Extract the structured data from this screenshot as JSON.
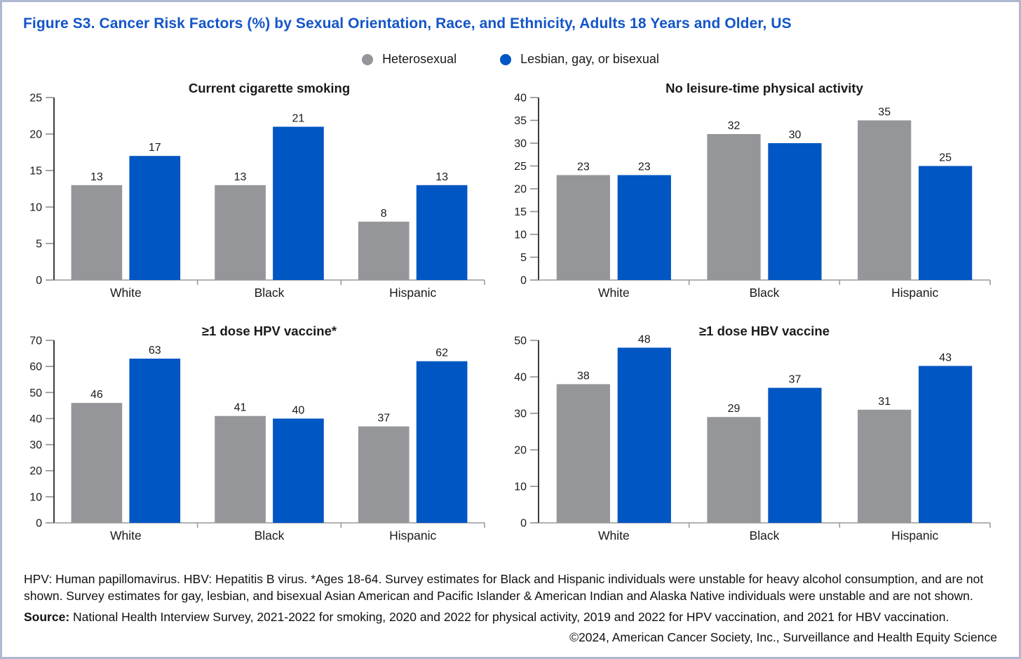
{
  "figure": {
    "title": "Figure S3. Cancer Risk Factors (%) by Sexual Orientation, Race, and Ethnicity, Adults 18 Years and Older, US",
    "title_color": "#1355c8",
    "border_color": "#aeb8d0",
    "background_color": "#ffffff"
  },
  "legend": {
    "position": "top-center",
    "items": [
      {
        "label": "Heterosexual",
        "color": "#949699"
      },
      {
        "label": "Lesbian, gay, or bisexual",
        "color": "#0056c2"
      }
    ]
  },
  "chart_data": [
    {
      "type": "bar",
      "title": "Current cigarette smoking",
      "categories": [
        "White",
        "Black",
        "Hispanic"
      ],
      "series": [
        {
          "name": "Heterosexual",
          "color": "#949699",
          "values": [
            13,
            13,
            8
          ]
        },
        {
          "name": "Lesbian, gay, or bisexual",
          "color": "#0056c2",
          "values": [
            17,
            21,
            13
          ]
        }
      ],
      "xlabel": "",
      "ylabel": "",
      "ylim": [
        0,
        25
      ],
      "ytick": 5,
      "grid": false,
      "value_labels": true
    },
    {
      "type": "bar",
      "title": "No leisure-time physical activity",
      "categories": [
        "White",
        "Black",
        "Hispanic"
      ],
      "series": [
        {
          "name": "Heterosexual",
          "color": "#949699",
          "values": [
            23,
            32,
            35
          ]
        },
        {
          "name": "Lesbian, gay, or bisexual",
          "color": "#0056c2",
          "values": [
            23,
            30,
            25
          ]
        }
      ],
      "xlabel": "",
      "ylabel": "",
      "ylim": [
        0,
        40
      ],
      "ytick": 5,
      "grid": false,
      "value_labels": true
    },
    {
      "type": "bar",
      "title": "≥1 dose HPV vaccine*",
      "categories": [
        "White",
        "Black",
        "Hispanic"
      ],
      "series": [
        {
          "name": "Heterosexual",
          "color": "#949699",
          "values": [
            46,
            41,
            37
          ]
        },
        {
          "name": "Lesbian, gay, or bisexual",
          "color": "#0056c2",
          "values": [
            63,
            40,
            62
          ]
        }
      ],
      "xlabel": "",
      "ylabel": "",
      "ylim": [
        0,
        70
      ],
      "ytick": 10,
      "grid": false,
      "value_labels": true
    },
    {
      "type": "bar",
      "title": "≥1 dose HBV vaccine",
      "categories": [
        "White",
        "Black",
        "Hispanic"
      ],
      "series": [
        {
          "name": "Heterosexual",
          "color": "#949699",
          "values": [
            38,
            29,
            31
          ]
        },
        {
          "name": "Lesbian, gay, or bisexual",
          "color": "#0056c2",
          "values": [
            48,
            37,
            43
          ]
        }
      ],
      "xlabel": "",
      "ylabel": "",
      "ylim": [
        0,
        50
      ],
      "ytick": 10,
      "grid": false,
      "value_labels": true
    }
  ],
  "axis_style": {
    "y_axis_color": "#3d3d3d",
    "tick_color": "#8f8f8f",
    "baseline_color": "#9a9a9a",
    "text_color": "#1a1a1a"
  },
  "footnotes": {
    "abbrev": "HPV: Human papillomavirus. HBV: Hepatitis B virus. *Ages 18-64. Survey estimates for Black and Hispanic individuals were unstable for heavy alcohol consumption, and are not shown. Survey estimates for gay, lesbian, and bisexual Asian American and Pacific Islander & American Indian and Alaska Native individuals were unstable and are not shown.",
    "source_label": "Source:",
    "source_text": " National Health Interview Survey, 2021-2022 for smoking, 2020 and 2022 for physical activity, 2019 and 2022 for HPV vaccination, and 2021 for HBV vaccination.",
    "copyright": "©2024, American Cancer Society, Inc., Surveillance and Health Equity Science"
  }
}
